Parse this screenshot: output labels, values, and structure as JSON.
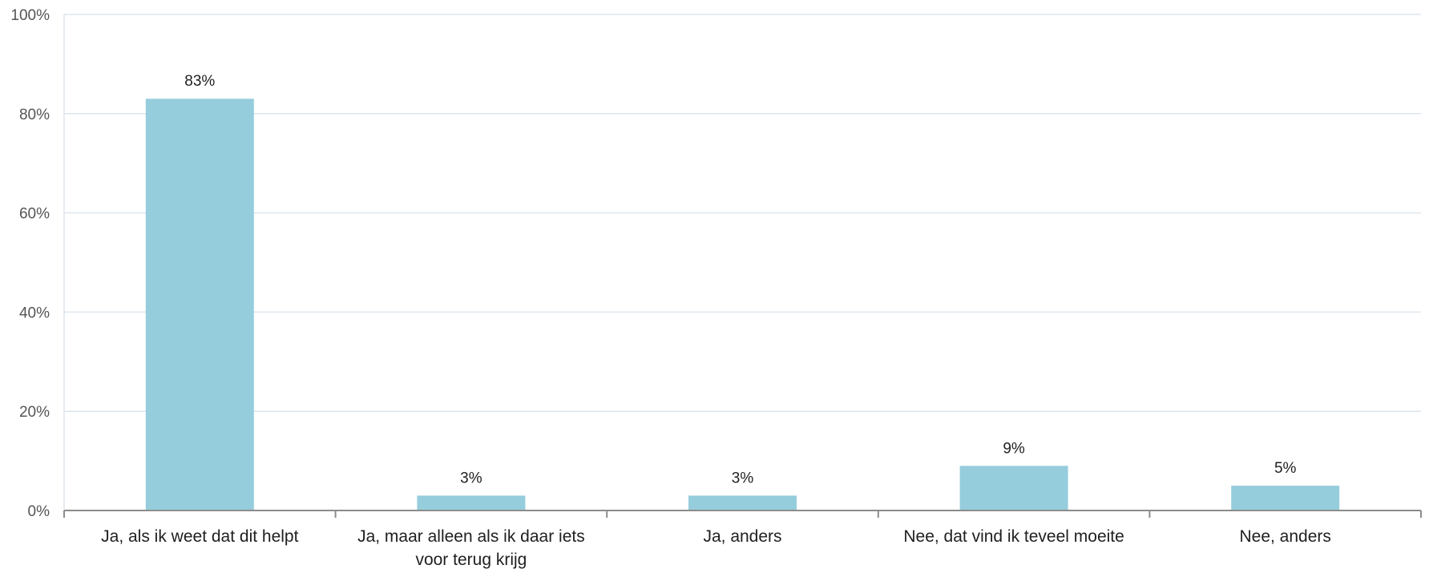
{
  "chart_data": {
    "type": "bar",
    "categories": [
      [
        "Ja, als ik weet dat dit helpt"
      ],
      [
        "Ja, maar alleen als ik daar iets",
        "voor terug krijg"
      ],
      [
        "Ja, anders"
      ],
      [
        "Nee, dat vind ik teveel moeite"
      ],
      [
        "Nee, anders"
      ]
    ],
    "values": [
      83,
      3,
      3,
      9,
      5
    ],
    "data_labels": [
      "83%",
      "3%",
      "3%",
      "9%",
      "5%"
    ],
    "yticks": [
      "0%",
      "20%",
      "40%",
      "60%",
      "80%",
      "100%"
    ],
    "ylim": [
      0,
      100
    ],
    "grid": true,
    "legend": "none",
    "colors": {
      "bar": "#96cddc",
      "grid": "#dde6ee",
      "axis": "#8c8c8c"
    }
  }
}
